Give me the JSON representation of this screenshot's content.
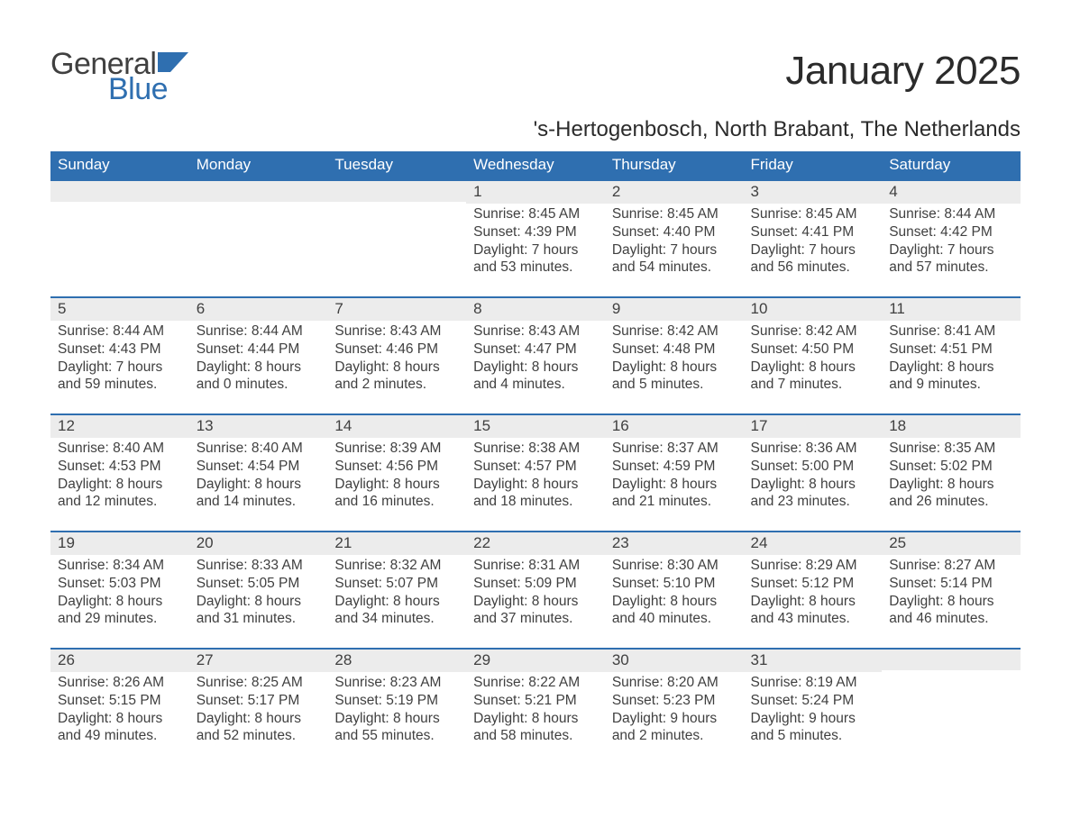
{
  "logo": {
    "text1": "General",
    "text2": "Blue",
    "flag_color": "#2f6fb0"
  },
  "title": "January 2025",
  "subtitle": "'s-Hertogenbosch, North Brabant, The Netherlands",
  "colors": {
    "header_bg": "#2f6fb0",
    "header_text": "#ffffff",
    "day_band_bg": "#ececec",
    "text": "#404040",
    "rule": "#2f6fb0"
  },
  "weekdays": [
    "Sunday",
    "Monday",
    "Tuesday",
    "Wednesday",
    "Thursday",
    "Friday",
    "Saturday"
  ],
  "weeks": [
    [
      {
        "day": "",
        "sunrise": "",
        "sunset": "",
        "daylight": ""
      },
      {
        "day": "",
        "sunrise": "",
        "sunset": "",
        "daylight": ""
      },
      {
        "day": "",
        "sunrise": "",
        "sunset": "",
        "daylight": ""
      },
      {
        "day": "1",
        "sunrise": "Sunrise: 8:45 AM",
        "sunset": "Sunset: 4:39 PM",
        "daylight": "Daylight: 7 hours and 53 minutes."
      },
      {
        "day": "2",
        "sunrise": "Sunrise: 8:45 AM",
        "sunset": "Sunset: 4:40 PM",
        "daylight": "Daylight: 7 hours and 54 minutes."
      },
      {
        "day": "3",
        "sunrise": "Sunrise: 8:45 AM",
        "sunset": "Sunset: 4:41 PM",
        "daylight": "Daylight: 7 hours and 56 minutes."
      },
      {
        "day": "4",
        "sunrise": "Sunrise: 8:44 AM",
        "sunset": "Sunset: 4:42 PM",
        "daylight": "Daylight: 7 hours and 57 minutes."
      }
    ],
    [
      {
        "day": "5",
        "sunrise": "Sunrise: 8:44 AM",
        "sunset": "Sunset: 4:43 PM",
        "daylight": "Daylight: 7 hours and 59 minutes."
      },
      {
        "day": "6",
        "sunrise": "Sunrise: 8:44 AM",
        "sunset": "Sunset: 4:44 PM",
        "daylight": "Daylight: 8 hours and 0 minutes."
      },
      {
        "day": "7",
        "sunrise": "Sunrise: 8:43 AM",
        "sunset": "Sunset: 4:46 PM",
        "daylight": "Daylight: 8 hours and 2 minutes."
      },
      {
        "day": "8",
        "sunrise": "Sunrise: 8:43 AM",
        "sunset": "Sunset: 4:47 PM",
        "daylight": "Daylight: 8 hours and 4 minutes."
      },
      {
        "day": "9",
        "sunrise": "Sunrise: 8:42 AM",
        "sunset": "Sunset: 4:48 PM",
        "daylight": "Daylight: 8 hours and 5 minutes."
      },
      {
        "day": "10",
        "sunrise": "Sunrise: 8:42 AM",
        "sunset": "Sunset: 4:50 PM",
        "daylight": "Daylight: 8 hours and 7 minutes."
      },
      {
        "day": "11",
        "sunrise": "Sunrise: 8:41 AM",
        "sunset": "Sunset: 4:51 PM",
        "daylight": "Daylight: 8 hours and 9 minutes."
      }
    ],
    [
      {
        "day": "12",
        "sunrise": "Sunrise: 8:40 AM",
        "sunset": "Sunset: 4:53 PM",
        "daylight": "Daylight: 8 hours and 12 minutes."
      },
      {
        "day": "13",
        "sunrise": "Sunrise: 8:40 AM",
        "sunset": "Sunset: 4:54 PM",
        "daylight": "Daylight: 8 hours and 14 minutes."
      },
      {
        "day": "14",
        "sunrise": "Sunrise: 8:39 AM",
        "sunset": "Sunset: 4:56 PM",
        "daylight": "Daylight: 8 hours and 16 minutes."
      },
      {
        "day": "15",
        "sunrise": "Sunrise: 8:38 AM",
        "sunset": "Sunset: 4:57 PM",
        "daylight": "Daylight: 8 hours and 18 minutes."
      },
      {
        "day": "16",
        "sunrise": "Sunrise: 8:37 AM",
        "sunset": "Sunset: 4:59 PM",
        "daylight": "Daylight: 8 hours and 21 minutes."
      },
      {
        "day": "17",
        "sunrise": "Sunrise: 8:36 AM",
        "sunset": "Sunset: 5:00 PM",
        "daylight": "Daylight: 8 hours and 23 minutes."
      },
      {
        "day": "18",
        "sunrise": "Sunrise: 8:35 AM",
        "sunset": "Sunset: 5:02 PM",
        "daylight": "Daylight: 8 hours and 26 minutes."
      }
    ],
    [
      {
        "day": "19",
        "sunrise": "Sunrise: 8:34 AM",
        "sunset": "Sunset: 5:03 PM",
        "daylight": "Daylight: 8 hours and 29 minutes."
      },
      {
        "day": "20",
        "sunrise": "Sunrise: 8:33 AM",
        "sunset": "Sunset: 5:05 PM",
        "daylight": "Daylight: 8 hours and 31 minutes."
      },
      {
        "day": "21",
        "sunrise": "Sunrise: 8:32 AM",
        "sunset": "Sunset: 5:07 PM",
        "daylight": "Daylight: 8 hours and 34 minutes."
      },
      {
        "day": "22",
        "sunrise": "Sunrise: 8:31 AM",
        "sunset": "Sunset: 5:09 PM",
        "daylight": "Daylight: 8 hours and 37 minutes."
      },
      {
        "day": "23",
        "sunrise": "Sunrise: 8:30 AM",
        "sunset": "Sunset: 5:10 PM",
        "daylight": "Daylight: 8 hours and 40 minutes."
      },
      {
        "day": "24",
        "sunrise": "Sunrise: 8:29 AM",
        "sunset": "Sunset: 5:12 PM",
        "daylight": "Daylight: 8 hours and 43 minutes."
      },
      {
        "day": "25",
        "sunrise": "Sunrise: 8:27 AM",
        "sunset": "Sunset: 5:14 PM",
        "daylight": "Daylight: 8 hours and 46 minutes."
      }
    ],
    [
      {
        "day": "26",
        "sunrise": "Sunrise: 8:26 AM",
        "sunset": "Sunset: 5:15 PM",
        "daylight": "Daylight: 8 hours and 49 minutes."
      },
      {
        "day": "27",
        "sunrise": "Sunrise: 8:25 AM",
        "sunset": "Sunset: 5:17 PM",
        "daylight": "Daylight: 8 hours and 52 minutes."
      },
      {
        "day": "28",
        "sunrise": "Sunrise: 8:23 AM",
        "sunset": "Sunset: 5:19 PM",
        "daylight": "Daylight: 8 hours and 55 minutes."
      },
      {
        "day": "29",
        "sunrise": "Sunrise: 8:22 AM",
        "sunset": "Sunset: 5:21 PM",
        "daylight": "Daylight: 8 hours and 58 minutes."
      },
      {
        "day": "30",
        "sunrise": "Sunrise: 8:20 AM",
        "sunset": "Sunset: 5:23 PM",
        "daylight": "Daylight: 9 hours and 2 minutes."
      },
      {
        "day": "31",
        "sunrise": "Sunrise: 8:19 AM",
        "sunset": "Sunset: 5:24 PM",
        "daylight": "Daylight: 9 hours and 5 minutes."
      },
      {
        "day": "",
        "sunrise": "",
        "sunset": "",
        "daylight": ""
      }
    ]
  ]
}
